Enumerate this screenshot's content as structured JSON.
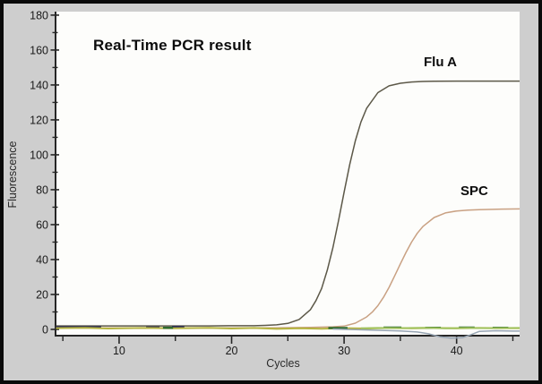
{
  "window": {
    "background_color": "#cecece",
    "border_color": "#0a0a0a",
    "plot_background_color": "#fdfdfb",
    "axis_color": "#262626"
  },
  "chart_data": {
    "type": "line",
    "title": "Real-Time PCR result",
    "xlabel": "Cycles",
    "ylabel": "Fluorescence",
    "xlim": [
      4.35,
      45.6
    ],
    "ylim": [
      -3.6,
      182
    ],
    "x_ticks": [
      10,
      20,
      30,
      40
    ],
    "x_minor_ticks": [
      5,
      15,
      25,
      35,
      45
    ],
    "y_ticks": [
      0,
      20,
      40,
      60,
      80,
      100,
      120,
      140,
      160,
      180
    ],
    "y_minor_ticks": [
      10,
      30,
      50,
      70,
      90,
      110,
      130,
      150,
      170
    ],
    "grid": false,
    "legend_position": "inline-annotations",
    "annotations": [
      {
        "text": "Flu A",
        "x": 36.9,
        "y": 152
      },
      {
        "text": "SPC",
        "x": 40.1,
        "y": 77
      }
    ],
    "series": [
      {
        "name": "Flu A amplification curve",
        "color": "#5c5848",
        "width": 1.5,
        "points": [
          [
            4.4,
            2
          ],
          [
            6,
            2
          ],
          [
            8,
            2
          ],
          [
            10,
            2
          ],
          [
            12,
            2
          ],
          [
            14,
            2
          ],
          [
            16,
            2
          ],
          [
            18,
            2
          ],
          [
            20,
            2.1
          ],
          [
            22,
            2.1
          ],
          [
            23,
            2.3
          ],
          [
            24,
            2.6
          ],
          [
            25,
            3.4
          ],
          [
            26,
            5.7
          ],
          [
            27,
            11.2
          ],
          [
            27.5,
            16.5
          ],
          [
            28,
            23.4
          ],
          [
            28.5,
            33.9
          ],
          [
            29,
            46.6
          ],
          [
            29.5,
            62.1
          ],
          [
            30,
            78.6
          ],
          [
            30.5,
            94.5
          ],
          [
            31,
            108.1
          ],
          [
            31.5,
            118.8
          ],
          [
            32,
            126.6
          ],
          [
            33,
            135.6
          ],
          [
            34,
            139.5
          ],
          [
            35,
            141
          ],
          [
            36,
            141.7
          ],
          [
            37,
            142
          ],
          [
            38,
            142.1
          ],
          [
            40,
            142.2
          ],
          [
            42,
            142.2
          ],
          [
            44,
            142.2
          ],
          [
            45.6,
            142.2
          ]
        ]
      },
      {
        "name": "SPC internal control curve",
        "color": "#c9a183",
        "width": 1.5,
        "points": [
          [
            4.4,
            0.8
          ],
          [
            8,
            0.8
          ],
          [
            12,
            0.8
          ],
          [
            16,
            0.8
          ],
          [
            20,
            0.8
          ],
          [
            24,
            0.9
          ],
          [
            27,
            1.1
          ],
          [
            29,
            1.5
          ],
          [
            30,
            1.9
          ],
          [
            31,
            3.6
          ],
          [
            32,
            7.1
          ],
          [
            32.5,
            9.9
          ],
          [
            33,
            13.6
          ],
          [
            33.5,
            18.4
          ],
          [
            34,
            24.1
          ],
          [
            34.5,
            30.7
          ],
          [
            35,
            37.5
          ],
          [
            35.5,
            44.1
          ],
          [
            36,
            50
          ],
          [
            36.5,
            55
          ],
          [
            37,
            58.9
          ],
          [
            38,
            64.1
          ],
          [
            39,
            66.7
          ],
          [
            40,
            67.8
          ],
          [
            41,
            68.3
          ],
          [
            42,
            68.6
          ],
          [
            44,
            68.9
          ],
          [
            45.6,
            69
          ]
        ]
      },
      {
        "name": "baseline control navy",
        "color": "#2e2d55",
        "width": 2.4,
        "points": [
          [
            4.4,
            1.3
          ],
          [
            8.4,
            1.3
          ],
          null,
          [
            12.4,
            1.1
          ],
          [
            13.6,
            1.1
          ],
          null,
          [
            14.7,
            1.4
          ],
          [
            15.8,
            1.4
          ]
        ]
      },
      {
        "name": "baseline control olive",
        "color": "#b5b441",
        "width": 2,
        "points": [
          [
            4.4,
            0.7
          ],
          [
            7,
            0.9
          ],
          [
            9,
            0.5
          ],
          [
            12,
            0.8
          ],
          [
            15,
            0.6
          ],
          [
            18,
            0.9
          ],
          [
            20,
            0.5
          ],
          [
            22,
            0.8
          ],
          [
            24,
            0.3
          ],
          [
            26,
            0.6
          ],
          [
            28,
            0.4
          ],
          [
            30,
            0.7
          ],
          [
            32,
            0.5
          ],
          [
            34,
            0.8
          ],
          [
            36,
            0.6
          ],
          [
            38,
            0.8
          ],
          [
            40,
            0.6
          ],
          [
            42,
            0.8
          ],
          [
            44,
            0.7
          ],
          [
            45.6,
            0.7
          ]
        ]
      },
      {
        "name": "baseline control dark-green",
        "color": "#2f6a2e",
        "width": 2.4,
        "points": [
          [
            13.9,
            0.9
          ],
          [
            14.8,
            0.9
          ],
          null,
          [
            28.6,
            0.8
          ],
          [
            30.3,
            0.8
          ],
          null,
          [
            33.5,
            1.0
          ],
          [
            35.1,
            1.0
          ],
          null,
          [
            37.2,
            0.9
          ],
          [
            38.6,
            0.9
          ],
          null,
          [
            40.2,
            1.0
          ],
          [
            41.6,
            1.0
          ],
          null,
          [
            43.2,
            0.9
          ],
          [
            44.6,
            0.9
          ]
        ]
      },
      {
        "name": "baseline control light-green",
        "color": "#a0c25c",
        "width": 2,
        "points": [
          [
            31.5,
            0.6
          ],
          [
            33,
            0.8
          ],
          [
            35,
            0.7
          ],
          [
            37,
            0.9
          ],
          [
            39,
            0.6
          ],
          [
            41,
            0.8
          ],
          [
            43,
            0.7
          ],
          [
            45.6,
            0.8
          ]
        ]
      },
      {
        "name": "baseline control gray-blue",
        "color": "#97a5b3",
        "width": 1.5,
        "points": [
          [
            29,
            0.2
          ],
          [
            31,
            -0.1
          ],
          [
            33,
            -0.5
          ],
          [
            35,
            -0.9
          ],
          [
            36.5,
            -1.5
          ],
          [
            37.5,
            -2.5
          ],
          [
            38.5,
            -4.2
          ],
          [
            39.5,
            -5
          ],
          [
            40.5,
            -4.8
          ],
          [
            41.3,
            -3
          ],
          [
            42,
            -1.2
          ],
          [
            43.5,
            -0.8
          ],
          [
            45,
            -1
          ],
          [
            45.6,
            -1
          ]
        ]
      }
    ]
  }
}
